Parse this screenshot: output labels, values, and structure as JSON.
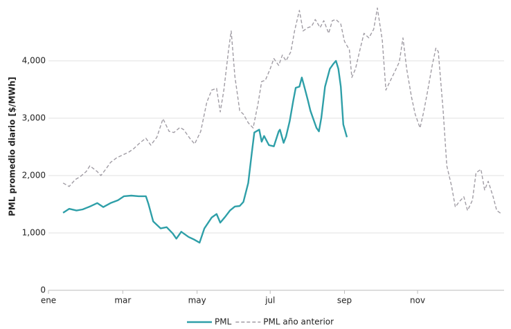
{
  "chart_data": {
    "type": "line",
    "ylabel": "PML promedio diario [$/MWh]",
    "xlim": [
      0,
      374
    ],
    "xticks": [
      {
        "value": 0,
        "label": "ene"
      },
      {
        "value": 61,
        "label": "mar"
      },
      {
        "value": 122,
        "label": "may"
      },
      {
        "value": 182,
        "label": "jul"
      },
      {
        "value": 243,
        "label": "sep"
      },
      {
        "value": 303,
        "label": "nov"
      }
    ],
    "ylim": [
      0,
      5000
    ],
    "yticks": [
      0,
      {
        "value": 1000,
        "label": "1,000"
      },
      {
        "value": 2000,
        "label": "2,000"
      },
      {
        "value": 3000,
        "label": "3,000"
      },
      {
        "value": 4000,
        "label": "4,000"
      }
    ],
    "grid": true,
    "legend": "bottom",
    "series": [
      {
        "name": "PML",
        "color": "#2e9fa8",
        "dashed": false,
        "x": [
          12,
          17,
          23,
          28,
          34,
          40,
          45,
          51,
          57,
          62,
          68,
          74,
          80,
          82,
          86,
          92,
          97,
          102,
          105,
          109,
          115,
          119,
          124,
          128,
          134,
          138,
          141,
          145,
          149,
          153,
          157,
          160,
          164,
          167,
          169,
          173,
          175,
          177,
          181,
          185,
          189,
          190,
          193,
          195,
          198,
          201,
          203,
          206,
          208,
          210,
          213,
          215,
          217,
          220,
          222,
          224,
          227,
          231,
          234,
          236,
          238,
          240,
          242,
          245
        ],
        "values": [
          1350,
          1420,
          1390,
          1410,
          1460,
          1520,
          1450,
          1520,
          1570,
          1640,
          1650,
          1640,
          1640,
          1510,
          1200,
          1080,
          1100,
          990,
          900,
          1020,
          930,
          890,
          830,
          1080,
          1270,
          1330,
          1180,
          1280,
          1390,
          1460,
          1470,
          1540,
          1870,
          2410,
          2750,
          2800,
          2590,
          2690,
          2530,
          2510,
          2770,
          2800,
          2570,
          2680,
          2950,
          3310,
          3530,
          3550,
          3710,
          3550,
          3310,
          3130,
          3010,
          2830,
          2770,
          3010,
          3550,
          3860,
          3950,
          4000,
          3860,
          3550,
          2890,
          2670
        ]
      },
      {
        "name": "PML año anterior",
        "color": "#a09ca4",
        "dashed": true,
        "x": [
          12,
          17,
          22,
          26,
          31,
          34,
          40,
          43,
          47,
          51,
          56,
          61,
          66,
          70,
          75,
          80,
          84,
          89,
          94,
          99,
          103,
          108,
          111,
          116,
          120,
          125,
          130,
          134,
          138,
          141,
          144,
          148,
          150,
          153,
          157,
          160,
          164,
          168,
          172,
          175,
          178,
          182,
          185,
          189,
          192,
          195,
          199,
          202,
          206,
          209,
          213,
          216,
          219,
          223,
          226,
          230,
          233,
          236,
          240,
          243,
          247,
          249,
          252,
          256,
          259,
          263,
          267,
          270,
          274,
          277,
          281,
          284,
          288,
          291,
          294,
          298,
          301,
          305,
          308,
          311,
          315,
          318,
          320,
          324,
          327,
          331,
          334,
          337,
          341,
          344,
          348,
          351,
          355,
          358,
          361,
          365,
          368,
          372
        ],
        "values": [
          1870,
          1810,
          1930,
          1980,
          2070,
          2170,
          2070,
          2000,
          2110,
          2230,
          2310,
          2360,
          2410,
          2470,
          2570,
          2650,
          2530,
          2670,
          2990,
          2770,
          2750,
          2840,
          2800,
          2650,
          2550,
          2770,
          3280,
          3490,
          3520,
          3110,
          3490,
          4220,
          4520,
          3730,
          3130,
          3070,
          2920,
          2830,
          3250,
          3640,
          3660,
          3860,
          4040,
          3920,
          4100,
          4000,
          4160,
          4520,
          4880,
          4520,
          4580,
          4600,
          4720,
          4580,
          4700,
          4480,
          4700,
          4720,
          4640,
          4340,
          4190,
          3710,
          3860,
          4220,
          4480,
          4400,
          4550,
          4920,
          4360,
          3490,
          3670,
          3800,
          3980,
          4400,
          3860,
          3370,
          3070,
          2830,
          3110,
          3450,
          3920,
          4220,
          4160,
          3130,
          2170,
          1810,
          1450,
          1540,
          1630,
          1390,
          1570,
          2050,
          2110,
          1750,
          1900,
          1630,
          1390,
          1330
        ]
      }
    ]
  }
}
